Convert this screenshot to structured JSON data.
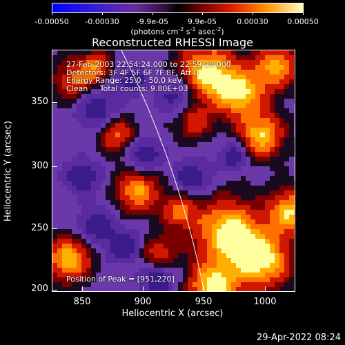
{
  "colorbar": {
    "tick_labels": [
      "-0.00050",
      "-0.00030",
      "-9.9e-05",
      "9.9e-05",
      "0.00030",
      "0.00050"
    ],
    "units": "(photons cm",
    "units_exp1": "-2",
    "units_mid": " s",
    "units_exp2": "-1",
    "units_mid2": " asec",
    "units_exp3": "-2",
    "units_end": ")"
  },
  "title": "Reconstructed RHESSI Image",
  "info": {
    "time_range": "27-Feb-2003 22:54:24.000 to 22:59:28.000",
    "detectors": "Detectors: 3F 4F 5F 6F 7F 8F, Att 0",
    "energy": "Energy Range: 25.0 - 50.0 keV",
    "clean": "Clean     Total counts: 9.80E+03",
    "peak": "Position of Peak = [951,220]"
  },
  "axes": {
    "xlabel": "Heliocentric X (arcsec)",
    "ylabel": "Heliocentric Y (arcsec)",
    "xticks": [
      "850",
      "900",
      "950",
      "1000"
    ],
    "yticks": [
      "350",
      "300",
      "250",
      "200"
    ]
  },
  "timestamp": "29-Apr-2022 08:24",
  "colors": {
    "background": "#000000",
    "foreground": "#ffffff"
  }
}
